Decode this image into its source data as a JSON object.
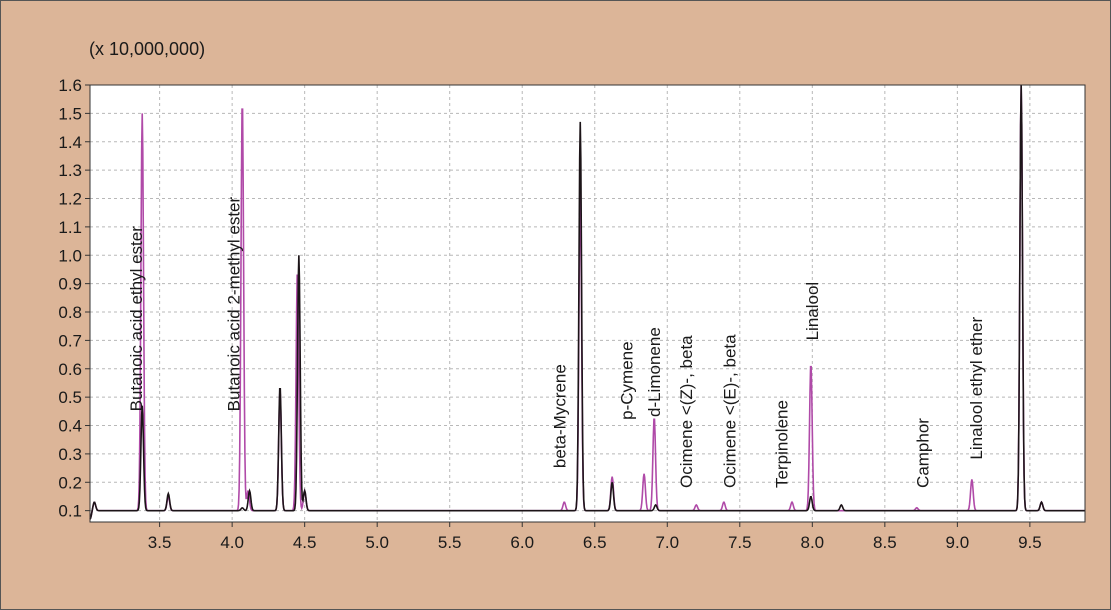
{
  "chart_data": {
    "type": "line",
    "multiplier_label": "(x 10,000,000)",
    "xlim": [
      3.02,
      9.88
    ],
    "ylim": [
      0.06,
      1.6
    ],
    "grid": true,
    "x_ticks": [
      "3.5",
      "4.0",
      "4.5",
      "5.0",
      "5.5",
      "6.0",
      "6.5",
      "7.0",
      "7.5",
      "8.0",
      "8.5",
      "9.0",
      "9.5"
    ],
    "y_ticks": [
      "0.1",
      "0.2",
      "0.3",
      "0.4",
      "0.5",
      "0.6",
      "0.7",
      "0.8",
      "0.9",
      "1.0",
      "1.1",
      "1.2",
      "1.3",
      "1.4",
      "1.5",
      "1.6"
    ],
    "baseline": 0.1,
    "series": [
      {
        "color": "#b04aa8",
        "peaks": [
          {
            "x": 3.02,
            "y": 0.07
          },
          {
            "x": 3.05,
            "y": 0.13
          },
          {
            "x": 3.38,
            "y": 1.5
          },
          {
            "x": 3.56,
            "y": 0.15
          },
          {
            "x": 4.07,
            "y": 1.55
          },
          {
            "x": 4.11,
            "y": 0.17
          },
          {
            "x": 4.33,
            "y": 0.52
          },
          {
            "x": 4.45,
            "y": 0.95
          },
          {
            "x": 4.5,
            "y": 0.17
          },
          {
            "x": 6.29,
            "y": 0.13
          },
          {
            "x": 6.4,
            "y": 1.24
          },
          {
            "x": 6.62,
            "y": 0.22
          },
          {
            "x": 6.84,
            "y": 0.23
          },
          {
            "x": 6.91,
            "y": 0.43
          },
          {
            "x": 7.2,
            "y": 0.12
          },
          {
            "x": 7.39,
            "y": 0.13
          },
          {
            "x": 7.86,
            "y": 0.13
          },
          {
            "x": 7.99,
            "y": 0.62
          },
          {
            "x": 8.72,
            "y": 0.11
          },
          {
            "x": 9.1,
            "y": 0.21
          },
          {
            "x": 9.44,
            "y": 1.6
          },
          {
            "x": 9.58,
            "y": 0.13
          }
        ]
      },
      {
        "color": "#1c1418",
        "peaks": [
          {
            "x": 3.02,
            "y": 0.07
          },
          {
            "x": 3.05,
            "y": 0.13
          },
          {
            "x": 3.38,
            "y": 0.47
          },
          {
            "x": 3.56,
            "y": 0.16
          },
          {
            "x": 4.07,
            "y": 0.11
          },
          {
            "x": 4.12,
            "y": 0.17
          },
          {
            "x": 4.33,
            "y": 0.54
          },
          {
            "x": 4.46,
            "y": 1.0
          },
          {
            "x": 4.5,
            "y": 0.17
          },
          {
            "x": 6.4,
            "y": 1.47
          },
          {
            "x": 6.62,
            "y": 0.2
          },
          {
            "x": 6.92,
            "y": 0.12
          },
          {
            "x": 7.99,
            "y": 0.15
          },
          {
            "x": 8.2,
            "y": 0.12
          },
          {
            "x": 9.44,
            "y": 1.6
          },
          {
            "x": 9.58,
            "y": 0.13
          }
        ]
      }
    ],
    "annotations": [
      {
        "text": "Butanoic acid ethyl ester",
        "x": 3.38,
        "y": 0.45
      },
      {
        "text": "Butanoic acid 2-methyl ester",
        "x": 4.05,
        "y": 0.45
      },
      {
        "text": "beta-Mycrene",
        "x": 6.3,
        "y": 0.25
      },
      {
        "text": "p-Cymene",
        "x": 6.76,
        "y": 0.42
      },
      {
        "text": "d-Limonene",
        "x": 6.95,
        "y": 0.43
      },
      {
        "text": "Ocimene <(Z)-, beta",
        "x": 7.17,
        "y": 0.18
      },
      {
        "text": "Ocimene <(E)-, beta",
        "x": 7.47,
        "y": 0.18
      },
      {
        "text": "Terpinolene",
        "x": 7.83,
        "y": 0.18
      },
      {
        "text": "Linalool",
        "x": 8.04,
        "y": 0.7
      },
      {
        "text": "Camphor",
        "x": 8.8,
        "y": 0.18
      },
      {
        "text": "Linalool ethyl ether",
        "x": 9.17,
        "y": 0.28
      }
    ]
  }
}
